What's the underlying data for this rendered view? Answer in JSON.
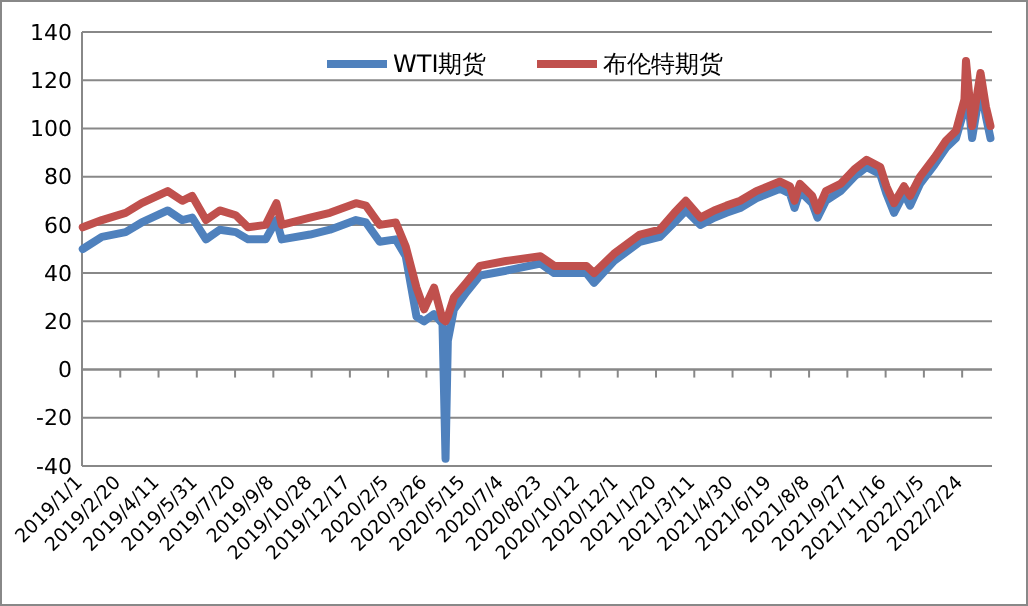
{
  "chart_data": {
    "type": "line",
    "x": [
      "2019-01-02",
      "2019-01-27",
      "2019-02-27",
      "2019-03-20",
      "2019-04-23",
      "2019-05-12",
      "2019-05-25",
      "2019-06-12",
      "2019-06-30",
      "2019-07-21",
      "2019-08-06",
      "2019-08-29",
      "2019-09-12",
      "2019-09-19",
      "2019-10-26",
      "2019-11-21",
      "2019-12-25",
      "2020-01-07",
      "2020-01-25",
      "2020-02-15",
      "2020-02-28",
      "2020-03-13",
      "2020-03-23",
      "2020-04-05",
      "2020-04-16",
      "2020-04-20",
      "2020-04-23",
      "2020-05-01",
      "2020-05-17",
      "2020-06-04",
      "2020-07-08",
      "2020-08-22",
      "2020-09-09",
      "2020-10-21",
      "2020-10-31",
      "2020-11-26",
      "2020-12-30",
      "2021-01-25",
      "2021-02-13",
      "2021-02-28",
      "2021-03-19",
      "2021-04-06",
      "2021-04-22",
      "2021-05-10",
      "2021-05-31",
      "2021-07-01",
      "2021-07-14",
      "2021-07-20",
      "2021-07-27",
      "2021-08-12",
      "2021-08-19",
      "2021-08-30",
      "2021-09-18",
      "2021-10-06",
      "2021-10-22",
      "2021-11-09",
      "2021-11-17",
      "2021-11-27",
      "2021-12-10",
      "2021-12-18",
      "2021-12-31",
      "2022-01-19",
      "2022-02-03",
      "2022-02-16",
      "2022-02-27",
      "2022-03-01",
      "2022-03-09",
      "2022-03-20",
      "2022-03-27",
      "2022-04-02"
    ],
    "series": [
      {
        "name": "WTI期货",
        "color": "#4f81bd",
        "values": [
          50,
          55,
          57,
          61,
          66,
          62,
          63,
          54,
          58,
          57,
          54,
          54,
          62,
          54,
          56,
          58,
          62,
          61,
          53,
          54,
          47,
          22,
          20,
          23,
          19,
          -37,
          12,
          25,
          32,
          39,
          41,
          44,
          40,
          40,
          36,
          45,
          53,
          55,
          61,
          66,
          60,
          63,
          65,
          67,
          71,
          75,
          73,
          67,
          74,
          69,
          63,
          70,
          74,
          80,
          84,
          81,
          73,
          65,
          73,
          68,
          77,
          85,
          92,
          96,
          108,
          120,
          96,
          117,
          105,
          96
        ]
      },
      {
        "name": "布伦特期货",
        "color": "#c0504d",
        "values": [
          59,
          62,
          65,
          69,
          74,
          70,
          72,
          62,
          66,
          64,
          59,
          60,
          69,
          60,
          63,
          65,
          69,
          68,
          60,
          61,
          51,
          34,
          25,
          34,
          21,
          20,
          22,
          30,
          36,
          43,
          45,
          47,
          43,
          43,
          40,
          48,
          56,
          58,
          65,
          70,
          63,
          66,
          68,
          70,
          74,
          78,
          76,
          70,
          77,
          72,
          66,
          74,
          77,
          83,
          87,
          84,
          76,
          69,
          76,
          72,
          80,
          88,
          95,
          99,
          112,
          128,
          101,
          123,
          109,
          101
        ]
      }
    ],
    "xlim": [
      "2019-01-01",
      "2022-04-04"
    ],
    "xticks": [
      {
        "value": "2019-01-01",
        "label": "2019/1/1"
      },
      {
        "value": "2019-02-20",
        "label": "2019/2/20"
      },
      {
        "value": "2019-04-11",
        "label": "2019/4/11"
      },
      {
        "value": "2019-05-31",
        "label": "2019/5/31"
      },
      {
        "value": "2019-07-20",
        "label": "2019/7/20"
      },
      {
        "value": "2019-09-08",
        "label": "2019/9/8"
      },
      {
        "value": "2019-10-28",
        "label": "2019/10/28"
      },
      {
        "value": "2019-12-17",
        "label": "2019/12/17"
      },
      {
        "value": "2020-02-05",
        "label": "2020/2/5"
      },
      {
        "value": "2020-03-26",
        "label": "2020/3/26"
      },
      {
        "value": "2020-05-15",
        "label": "2020/5/15"
      },
      {
        "value": "2020-07-04",
        "label": "2020/7/4"
      },
      {
        "value": "2020-08-23",
        "label": "2020/8/23"
      },
      {
        "value": "2020-10-12",
        "label": "2020/10/12"
      },
      {
        "value": "2020-12-01",
        "label": "2020/12/1"
      },
      {
        "value": "2021-01-20",
        "label": "2021/1/20"
      },
      {
        "value": "2021-03-11",
        "label": "2021/3/11"
      },
      {
        "value": "2021-04-30",
        "label": "2021/4/30"
      },
      {
        "value": "2021-06-19",
        "label": "2021/6/19"
      },
      {
        "value": "2021-08-08",
        "label": "2021/8/8"
      },
      {
        "value": "2021-09-27",
        "label": "2021/9/27"
      },
      {
        "value": "2021-11-16",
        "label": "2021/11/16"
      },
      {
        "value": "2022-01-05",
        "label": "2022/1/5"
      },
      {
        "value": "2022-02-24",
        "label": "2022/2/24"
      }
    ],
    "ylim": [
      -40,
      140
    ],
    "yticks": [
      -40,
      -20,
      0,
      20,
      40,
      60,
      80,
      100,
      120,
      140
    ],
    "grid": "y",
    "legend": "top",
    "marker": "none",
    "line_style": "solid"
  }
}
